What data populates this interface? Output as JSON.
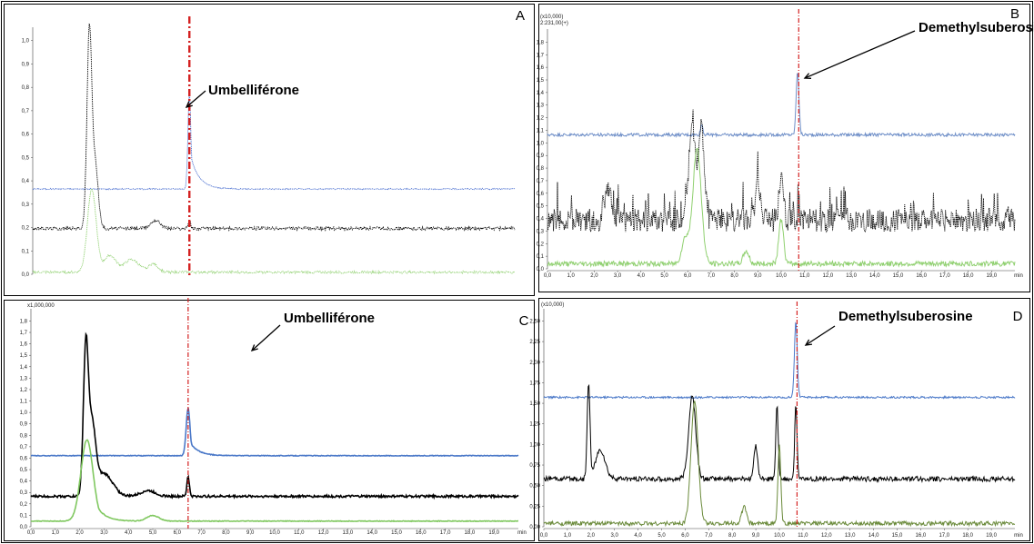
{
  "chart_data": [
    {
      "type": "line",
      "panel_label": "A",
      "annotation": "Umbelliférone",
      "scale_label": "",
      "y_ticks": [
        "0,0",
        "0,1",
        "0,2",
        "0,3",
        "0,4",
        "0,5",
        "0,6",
        "0,7",
        "0,8",
        "0,9",
        "1,0"
      ],
      "x_ticks": [],
      "xlim": [
        0,
        20
      ],
      "ylim": [
        0,
        1.17
      ],
      "marker_x": 6.5,
      "peaks": [
        {
          "x": 2.4,
          "height": 0.73,
          "width": 0.18
        },
        {
          "x": 2.55,
          "height": 0.3,
          "width": 0.15
        },
        {
          "x": 6.5,
          "height": 0.45,
          "width": 0.08
        }
      ],
      "series": [
        {
          "color": "#4a6fd0",
          "style": "dotted",
          "baseline": 0.41,
          "noise": 0.003,
          "peaks": [
            {
              "x": 6.5,
              "height": 0.46,
              "width": 0.06,
              "tail": 0.4
            }
          ]
        },
        {
          "color": "#000000",
          "style": "dotted",
          "baseline": 0.22,
          "noise": 0.008,
          "peaks": [
            {
              "x": 2.35,
              "height": 0.95,
              "width": 0.1
            },
            {
              "x": 2.6,
              "height": 0.3,
              "width": 0.12
            },
            {
              "x": 5.1,
              "height": 0.04,
              "width": 0.2
            },
            {
              "x": 6.5,
              "height": 0.04,
              "width": 0.05
            }
          ]
        },
        {
          "color": "#90d070",
          "style": "dotted",
          "baseline": 0.01,
          "noise": 0.006,
          "peaks": [
            {
              "x": 2.45,
              "height": 0.4,
              "width": 0.18
            },
            {
              "x": 3.2,
              "height": 0.08,
              "width": 0.25
            },
            {
              "x": 4.1,
              "height": 0.06,
              "width": 0.3
            },
            {
              "x": 5.0,
              "height": 0.04,
              "width": 0.2
            }
          ]
        }
      ]
    },
    {
      "type": "line",
      "panel_label": "B",
      "annotation": "Demethylsuberosine",
      "scale_label": "(x10,000)",
      "scale_label2": "2:231,00(+)",
      "y_ticks": [
        "0,0",
        "0,1",
        "0,2",
        "0,3",
        "0,4",
        "0,5",
        "0,6",
        "0,7",
        "0,8",
        "0,9",
        "1,0",
        "1,1",
        "1,2",
        "1,3",
        "1,4",
        "1,5",
        "1,6",
        "1,7",
        "1,8"
      ],
      "x_ticks": [
        "0,0",
        "1,0",
        "2,0",
        "3,0",
        "4,0",
        "5,0",
        "6,0",
        "7,0",
        "8,0",
        "9,0",
        "10,0",
        "11,0",
        "12,0",
        "13,0",
        "14,0",
        "15,0",
        "16,0",
        "17,0",
        "18,0",
        "19,0",
        "min"
      ],
      "xlim": [
        0,
        20
      ],
      "ylim": [
        0,
        1.85
      ],
      "marker_x": 10.75,
      "series": [
        {
          "color": "#6f8fc8",
          "style": "solid",
          "baseline": 1.05,
          "noise": 0.012,
          "peaks": [
            {
              "x": 10.7,
              "height": 0.5,
              "width": 0.06
            },
            {
              "x": 6.6,
              "height": 0.08,
              "width": 0.05
            }
          ]
        },
        {
          "color": "#000000",
          "style": "dotted",
          "baseline": 0.38,
          "noise": 0.09,
          "peaks": [
            {
              "x": 6.2,
              "height": 0.75,
              "width": 0.15
            },
            {
              "x": 6.6,
              "height": 0.7,
              "width": 0.12
            },
            {
              "x": 2.6,
              "height": 0.25,
              "width": 0.15
            },
            {
              "x": 9.0,
              "height": 0.3,
              "width": 0.1
            },
            {
              "x": 10.0,
              "height": 0.3,
              "width": 0.1
            }
          ]
        },
        {
          "color": "#90d070",
          "style": "solid",
          "baseline": 0.04,
          "noise": 0.02,
          "peaks": [
            {
              "x": 6.4,
              "height": 0.9,
              "width": 0.18
            },
            {
              "x": 5.9,
              "height": 0.2,
              "width": 0.15
            },
            {
              "x": 10.0,
              "height": 0.35,
              "width": 0.1
            },
            {
              "x": 8.5,
              "height": 0.1,
              "width": 0.12
            }
          ]
        }
      ]
    },
    {
      "type": "line",
      "panel_label": "C",
      "annotation": "Umbelliférone",
      "scale_label": "x1,000,000",
      "y_ticks": [
        "0,0",
        "0,1",
        "0,2",
        "0,3",
        "0,4",
        "0,5",
        "0,6",
        "0,7",
        "0,8",
        "0,9",
        "1,0",
        "1,1",
        "1,2",
        "1,3",
        "1,4",
        "1,5",
        "1,6",
        "1,7",
        "1,8"
      ],
      "x_ticks": [
        "0,0",
        "1,0",
        "2,0",
        "3,0",
        "4,0",
        "5,0",
        "6,0",
        "7,0",
        "8,0",
        "9,0",
        "10,0",
        "11,0",
        "12,0",
        "13,0",
        "14,0",
        "15,0",
        "16,0",
        "17,0",
        "18,0",
        "19,0",
        "min"
      ],
      "xlim": [
        0,
        20
      ],
      "ylim": [
        -0.05,
        1.85
      ],
      "marker_x": 6.45,
      "series": [
        {
          "color": "#4a78c8",
          "style": "solid",
          "baseline": 0.58,
          "noise": 0.003,
          "peaks": [
            {
              "x": 6.45,
              "height": 0.42,
              "width": 0.08,
              "tail": 0.35
            }
          ]
        },
        {
          "color": "#000000",
          "style": "solid",
          "baseline": 0.22,
          "noise": 0.01,
          "peaks": [
            {
              "x": 2.25,
              "height": 1.25,
              "width": 0.1
            },
            {
              "x": 2.5,
              "height": 0.6,
              "width": 0.15
            },
            {
              "x": 3.0,
              "height": 0.2,
              "width": 0.35
            },
            {
              "x": 4.8,
              "height": 0.05,
              "width": 0.3
            },
            {
              "x": 6.45,
              "height": 0.18,
              "width": 0.05
            }
          ]
        },
        {
          "color": "#80c860",
          "style": "solid",
          "baseline": 0.0,
          "noise": 0.003,
          "peaks": [
            {
              "x": 2.3,
              "height": 0.72,
              "width": 0.25,
              "tail": 0.6
            },
            {
              "x": 5.0,
              "height": 0.05,
              "width": 0.25
            }
          ]
        }
      ]
    },
    {
      "type": "line",
      "panel_label": "D",
      "annotation": "Demethylsuberosine",
      "scale_label": "(x10,000)",
      "y_ticks": [
        "0,00",
        "0,25",
        "0,50",
        "0,75",
        "1,00",
        "1,25",
        "1,50",
        "1,75",
        "2,00",
        "2,25",
        "2,50"
      ],
      "x_ticks": [
        "0,0",
        "1,0",
        "2,0",
        "3,0",
        "4,0",
        "5,0",
        "6,0",
        "7,0",
        "8,0",
        "9,0",
        "10,0",
        "11,0",
        "12,0",
        "13,0",
        "14,0",
        "15,0",
        "16,0",
        "17,0",
        "18,0",
        "19,0",
        "min"
      ],
      "xlim": [
        0,
        20
      ],
      "ylim": [
        0,
        2.6
      ],
      "marker_x": 10.75,
      "series": [
        {
          "color": "#4a78c8",
          "style": "solid",
          "baseline": 1.57,
          "noise": 0.012,
          "peaks": [
            {
              "x": 10.7,
              "height": 0.92,
              "width": 0.06
            }
          ]
        },
        {
          "color": "#000000",
          "style": "solid",
          "baseline": 0.58,
          "noise": 0.03,
          "peaks": [
            {
              "x": 1.9,
              "height": 1.15,
              "width": 0.06
            },
            {
              "x": 2.4,
              "height": 0.35,
              "width": 0.2
            },
            {
              "x": 6.3,
              "height": 1.0,
              "width": 0.15
            },
            {
              "x": 9.0,
              "height": 0.4,
              "width": 0.08
            },
            {
              "x": 9.9,
              "height": 0.9,
              "width": 0.05
            },
            {
              "x": 10.7,
              "height": 0.9,
              "width": 0.05
            }
          ]
        },
        {
          "color": "#6a8a3a",
          "style": "solid",
          "baseline": 0.04,
          "noise": 0.025,
          "peaks": [
            {
              "x": 6.4,
              "height": 1.5,
              "width": 0.15
            },
            {
              "x": 10.0,
              "height": 0.95,
              "width": 0.06
            },
            {
              "x": 8.5,
              "height": 0.2,
              "width": 0.1
            }
          ]
        }
      ]
    }
  ]
}
